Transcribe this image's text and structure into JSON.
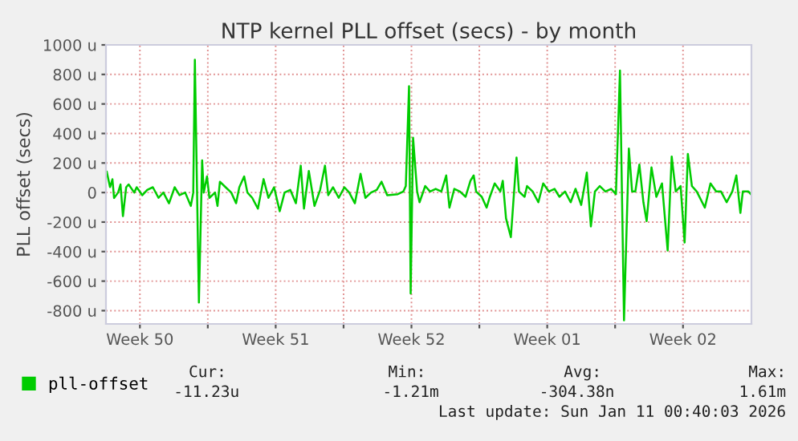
{
  "chart_data": {
    "type": "line",
    "title": "NTP kernel PLL offset (secs) - by month",
    "ylabel": "PLL offset (secs)",
    "series": [
      {
        "name": "pll-offset",
        "color": "#00cc00",
        "x": [
          "2025-12-08T19:00",
          "2025-12-08T23:00",
          "2025-12-09T02:00",
          "2025-12-09T04:00",
          "2025-12-09T09:00",
          "2025-12-09T12:00",
          "2025-12-09T15:00",
          "2025-12-09T19:00",
          "2025-12-09T22:00",
          "2025-12-10T05:00",
          "2025-12-10T08:00",
          "2025-12-10T15:00",
          "2025-12-10T21:00",
          "2025-12-11T04:00",
          "2025-12-11T11:00",
          "2025-12-11T17:00",
          "2025-12-12T00:00",
          "2025-12-12T07:00",
          "2025-12-12T13:00",
          "2025-12-12T20:00",
          "2025-12-13T03:00",
          "2025-12-13T06:00",
          "2025-12-13T08:00",
          "2025-12-13T13:00",
          "2025-12-13T17:00",
          "2025-12-13T19:00",
          "2025-12-13T23:00",
          "2025-12-14T02:00",
          "2025-12-14T09:00",
          "2025-12-14T12:00",
          "2025-12-14T15:00",
          "2025-12-14T22:00",
          "2025-12-15T05:00",
          "2025-12-15T11:00",
          "2025-12-15T15:00",
          "2025-12-15T21:00",
          "2025-12-16T01:00",
          "2025-12-16T07:00",
          "2025-12-16T14:00",
          "2025-12-16T21:00",
          "2025-12-17T03:00",
          "2025-12-17T10:00",
          "2025-12-17T17:00",
          "2025-12-17T23:00",
          "2025-12-18T06:00",
          "2025-12-18T13:00",
          "2025-12-18T19:00",
          "2025-12-18T23:00",
          "2025-12-19T05:00",
          "2025-12-19T12:00",
          "2025-12-19T19:00",
          "2025-12-20T01:00",
          "2025-12-20T05:00",
          "2025-12-20T11:00",
          "2025-12-20T18:00",
          "2025-12-21T01:00",
          "2025-12-21T07:00",
          "2025-12-21T14:00",
          "2025-12-21T21:00",
          "2025-12-22T03:00",
          "2025-12-22T10:00",
          "2025-12-22T17:00",
          "2025-12-22T23:00",
          "2025-12-23T06:00",
          "2025-12-23T19:00",
          "2025-12-24T02:00",
          "2025-12-24T05:00",
          "2025-12-24T09:00",
          "2025-12-24T11:00",
          "2025-12-24T14:00",
          "2025-12-24T19:00",
          "2025-12-24T22:00",
          "2025-12-25T05:00",
          "2025-12-25T11:00",
          "2025-12-25T18:00",
          "2025-12-26T01:00",
          "2025-12-26T07:00",
          "2025-12-26T11:00",
          "2025-12-26T17:00",
          "2025-12-27T00:00",
          "2025-12-27T07:00",
          "2025-12-27T13:00",
          "2025-12-27T17:00",
          "2025-12-27T20:00",
          "2025-12-28T03:00",
          "2025-12-28T09:00",
          "2025-12-28T13:00",
          "2025-12-28T19:00",
          "2025-12-29T02:00",
          "2025-12-29T05:00",
          "2025-12-29T09:00",
          "2025-12-29T15:00",
          "2025-12-29T19:00",
          "2025-12-29T22:00",
          "2025-12-30T01:00",
          "2025-12-30T08:00",
          "2025-12-30T11:00",
          "2025-12-30T18:00",
          "2025-12-31T01:00",
          "2025-12-31T07:00",
          "2025-12-31T14:00",
          "2025-12-31T21:00",
          "2026-01-01T03:00",
          "2026-01-01T10:00",
          "2026-01-01T17:00",
          "2026-01-01T23:00",
          "2026-01-02T06:00",
          "2026-01-02T13:00",
          "2026-01-02T18:00",
          "2026-01-02T23:00",
          "2026-01-03T05:00",
          "2026-01-03T12:00",
          "2026-01-03T19:00",
          "2026-01-04T01:00",
          "2026-01-04T06:00",
          "2026-01-04T11:00",
          "2026-01-04T17:00",
          "2026-01-04T21:00",
          "2026-01-05T01:00",
          "2026-01-05T06:00",
          "2026-01-05T11:00",
          "2026-01-05T15:00",
          "2026-01-05T21:00",
          "2026-01-06T03:00",
          "2026-01-06T10:00",
          "2026-01-06T17:00",
          "2026-01-06T22:00",
          "2026-01-07T03:00",
          "2026-01-07T09:00",
          "2026-01-07T14:00",
          "2026-01-07T18:00",
          "2026-01-07T23:00",
          "2026-01-08T05:00",
          "2026-01-08T15:00",
          "2026-01-08T22:00",
          "2026-01-09T05:00",
          "2026-01-09T11:00",
          "2026-01-09T18:00",
          "2026-01-10T01:00",
          "2026-01-10T06:00",
          "2026-01-10T11:00",
          "2026-01-10T14:00",
          "2026-01-10T21:00",
          "2026-01-11T00:00"
        ],
        "values": [
          140,
          37,
          90,
          -37,
          0,
          55,
          -160,
          36,
          55,
          0,
          36,
          -18,
          18,
          36,
          -36,
          0,
          -73,
          36,
          -18,
          0,
          -91,
          0,
          900,
          -745,
          218,
          0,
          109,
          -36,
          0,
          -91,
          73,
          36,
          0,
          -73,
          36,
          109,
          0,
          -36,
          -109,
          91,
          -36,
          36,
          -127,
          0,
          18,
          -73,
          182,
          -109,
          146,
          -91,
          18,
          182,
          -18,
          36,
          -36,
          36,
          0,
          -73,
          127,
          -36,
          0,
          18,
          73,
          -18,
          -11,
          7,
          44,
          720,
          -684,
          371,
          7,
          -66,
          44,
          7,
          25,
          7,
          116,
          -102,
          25,
          7,
          -29,
          80,
          116,
          7,
          -29,
          -102,
          -29,
          62,
          7,
          80,
          -175,
          -302,
          7,
          237,
          7,
          -29,
          44,
          7,
          -66,
          62,
          7,
          25,
          -29,
          7,
          -66,
          25,
          -84,
          135,
          -230,
          7,
          44,
          7,
          25,
          -11,
          826,
          -866,
          298,
          7,
          7,
          190,
          -66,
          -193,
          171,
          -29,
          62,
          -393,
          244,
          7,
          44,
          -339,
          262,
          44,
          7,
          -102,
          62,
          7,
          7,
          -66,
          7,
          116,
          -138,
          7,
          7,
          -11
        ]
      }
    ],
    "xlim": [
      "2025-12-08T18:00",
      "2026-01-11T00:40"
    ],
    "xticks": [
      {
        "value": "2025-12-10T12:00",
        "label": "Week 50"
      },
      {
        "value": "2025-12-14",
        "label": null
      },
      {
        "value": "2025-12-17T12:00",
        "label": "Week 51"
      },
      {
        "value": "2025-12-21",
        "label": null
      },
      {
        "value": "2025-12-24T12:00",
        "label": "Week 52"
      },
      {
        "value": "2025-12-28",
        "label": null
      },
      {
        "value": "2025-12-31T12:00",
        "label": "Week 01"
      },
      {
        "value": "2026-01-04",
        "label": null
      },
      {
        "value": "2026-01-07T12:00",
        "label": "Week 02"
      }
    ],
    "ylim": [
      -890,
      1000
    ],
    "yticks": [
      {
        "value": -800,
        "label": "-800 u"
      },
      {
        "value": -600,
        "label": "-600 u"
      },
      {
        "value": -400,
        "label": "-400 u"
      },
      {
        "value": -200,
        "label": "-200 u"
      },
      0,
      {
        "value": 200,
        "label": "200 u"
      },
      {
        "value": 400,
        "label": "400 u"
      },
      {
        "value": 600,
        "label": "600 u"
      },
      {
        "value": 800,
        "label": "800 u"
      },
      {
        "value": 1000,
        "label": "1000 u"
      }
    ],
    "grid": true,
    "legend": "bottom left",
    "annotations": [
      "Cur:",
      "Min:",
      "Avg:",
      "Max:",
      "-11.23u",
      "-1.21m",
      "-304.38n",
      "1.61m",
      "Last update: Sun Jan 11 00:40:03 2026"
    ]
  }
}
